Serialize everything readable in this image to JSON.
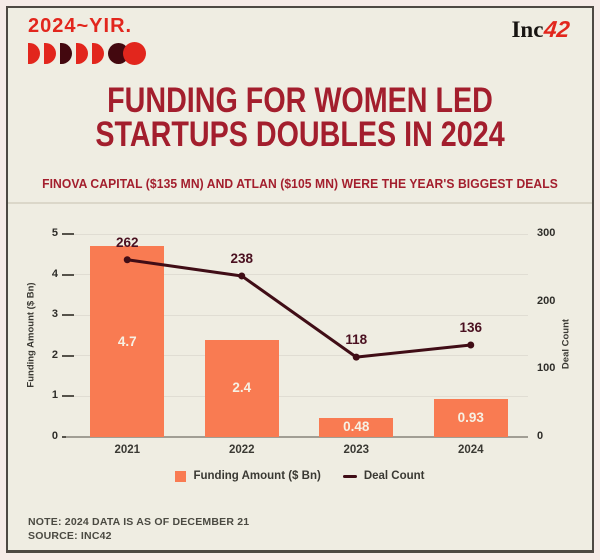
{
  "header": {
    "logo_text": "2024~YIR.",
    "logo_icons": [
      "half-red",
      "half-red",
      "half-maroon",
      "half-red",
      "half-red",
      "circle-maroon",
      "circle-red"
    ],
    "brand_prefix": "Inc",
    "brand_suffix": "42"
  },
  "title": {
    "line1": "FUNDING FOR WOMEN LED",
    "line2": "STARTUPS DOUBLES IN 2024"
  },
  "subtitle": "FINOVA CAPITAL ($135 MN) AND ATLAN ($105 MN) WERE THE YEAR'S BIGGEST DEALS",
  "chart_data": {
    "type": "bar+line",
    "categories": [
      "2021",
      "2022",
      "2023",
      "2024"
    ],
    "series": [
      {
        "name": "Funding Amount ($ Bn)",
        "type": "bar",
        "axis": "left",
        "values": [
          4.7,
          2.4,
          0.48,
          0.93
        ]
      },
      {
        "name": "Deal Count",
        "type": "line",
        "axis": "right",
        "values": [
          262,
          238,
          118,
          136
        ]
      }
    ],
    "left_axis": {
      "label": "Funding Amount ($ Bn)",
      "min": 0,
      "max": 5,
      "ticks": [
        0,
        1,
        2,
        3,
        4,
        5
      ]
    },
    "right_axis": {
      "label": "Deal Count",
      "min": 0,
      "max": 300,
      "ticks": [
        0,
        100,
        200,
        300
      ]
    },
    "grid": true,
    "legend_position": "bottom"
  },
  "legend": [
    {
      "label": "Funding Amount ($ Bn)",
      "swatch": "bar"
    },
    {
      "label": "Deal Count",
      "swatch": "line"
    }
  ],
  "footer": {
    "note": "NOTE: 2024 DATA IS AS OF DECEMBER 21",
    "source": "SOURCE: INC42"
  },
  "colors": {
    "bar": "#F97B52",
    "line": "#400D16",
    "title": "#A31E2D",
    "logo_red": "#E2261D",
    "logo_maroon": "#43080F",
    "card_bg": "#EFEDE2",
    "outer_bg": "#F6EBE7",
    "border": "#4E4943",
    "axis_text": "#2E2D29",
    "bar_value_text": "#F6F1E4",
    "deal_label_text": "#4A1020"
  }
}
